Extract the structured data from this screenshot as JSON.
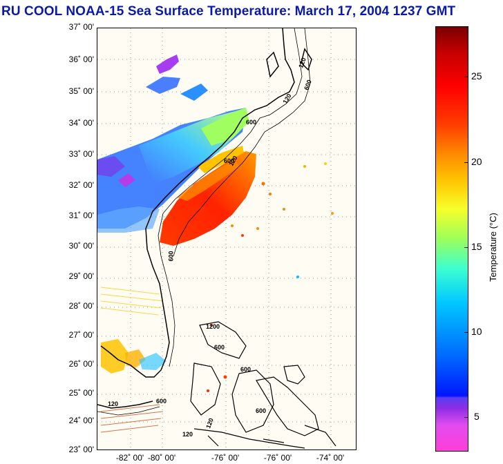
{
  "title": "RU COOL  NOAA-15  Sea Surface Temperature:  March 17, 2004 1237 GMT",
  "map": {
    "lat_labels": [
      "37˚ 00'",
      "36˚ 00'",
      "35˚ 00'",
      "34˚ 00'",
      "33˚ 00'",
      "32˚ 00'",
      "31˚ 00'",
      "30˚ 00'",
      "29˚ 00'",
      "28˚ 00'",
      "27˚ 00'",
      "26˚ 00'",
      "25˚ 00'",
      "24˚ 00'",
      "23˚ 00'"
    ],
    "lon_labels": [
      "-82˚ 00'",
      "-80˚ 00'",
      "-76˚ 00'",
      "-76˚ 00'",
      "-74˚ 00'"
    ],
    "contour_labels": [
      "120",
      "600",
      "120",
      "600",
      "120",
      "600",
      "1200",
      "600",
      "600",
      "120",
      "600",
      "120",
      "600",
      "120",
      "600"
    ]
  },
  "colorbar": {
    "label": "Temperature (°C)",
    "ticks": [
      "25",
      "20",
      "15",
      "10",
      "5"
    ],
    "tick_values": [
      25,
      20,
      15,
      10,
      5
    ],
    "range": [
      3,
      28
    ]
  },
  "colors": {
    "title": "#0a1aa8",
    "land": "#fffdf3"
  }
}
